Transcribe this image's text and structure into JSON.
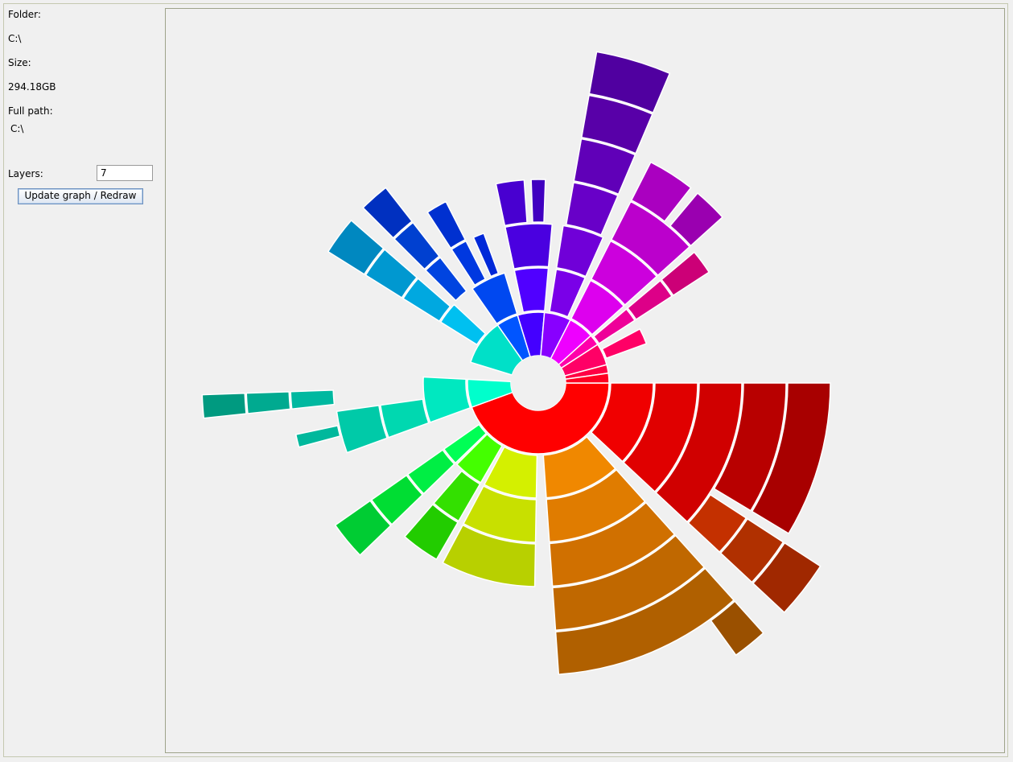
{
  "sidebar": {
    "folder_label": "Folder:",
    "folder_value": "C:\\",
    "size_label": "Size:",
    "size_value": "294.18GB",
    "fullpath_label": "Full path:",
    "fullpath_value": "C:\\",
    "layers_label": "Layers:",
    "layers_value": "7",
    "update_button": "Update graph / Redraw"
  },
  "colors": {
    "background": "#f0f0f0",
    "border": "#9ea38a",
    "separator": "#ffffff"
  },
  "sunburst": {
    "root": "C:\\",
    "layers": 7
  }
}
